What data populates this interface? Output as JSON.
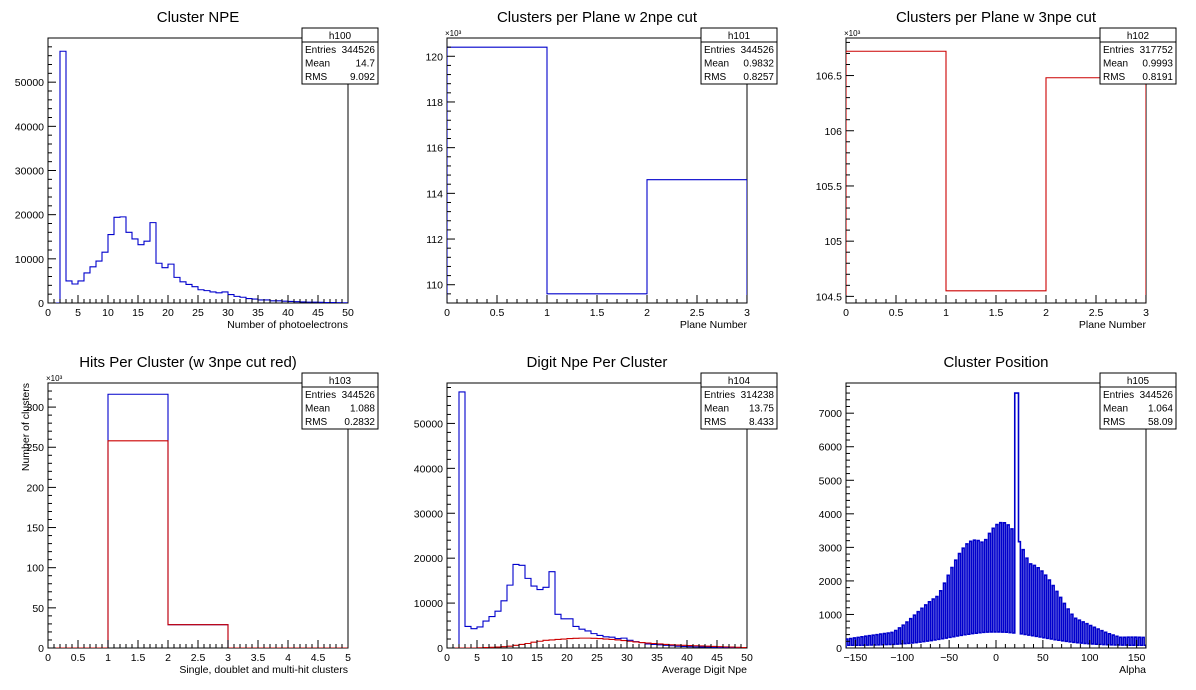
{
  "chart_data": [
    {
      "id": "h100",
      "type": "histogram",
      "title": "Cluster NPE",
      "xlabel": "Number of photoelectrons",
      "ylabel": "",
      "xlim": [
        0,
        50
      ],
      "ylim": [
        0,
        60000
      ],
      "xticks": [
        0,
        5,
        10,
        15,
        20,
        25,
        30,
        35,
        40,
        45,
        50
      ],
      "xtick_labels": [
        "0",
        "5",
        "10",
        "15",
        "20",
        "25",
        "30",
        "35",
        "40",
        "45",
        "50"
      ],
      "yticks": [
        0,
        10000,
        20000,
        30000,
        40000,
        50000
      ],
      "ytick_labels": [
        "0",
        "10000",
        "20000",
        "30000",
        "40000",
        "50000"
      ],
      "yexp": "",
      "stats": {
        "name": "h100",
        "entries": "344526",
        "mean": "14.7",
        "rms": "9.092"
      },
      "series": [
        {
          "color": "#0000cc",
          "bin_width": 1,
          "x_start": 1,
          "values": [
            0,
            57000,
            5000,
            4300,
            5000,
            6800,
            8200,
            9500,
            11500,
            15500,
            19400,
            19500,
            16000,
            14500,
            13200,
            14000,
            18200,
            9000,
            8000,
            8800,
            5800,
            4800,
            4200,
            3700,
            3000,
            2800,
            2500,
            2300,
            2500,
            1900,
            1500,
            1300,
            1000,
            900,
            700,
            700,
            500,
            500,
            400,
            350,
            300,
            250,
            200,
            200,
            150,
            100,
            100,
            80,
            50
          ]
        }
      ]
    },
    {
      "id": "h101",
      "type": "histogram",
      "title": "Clusters per Plane w 2npe cut",
      "xlabel": "Plane Number",
      "ylabel": "",
      "xlim": [
        0,
        3
      ],
      "ylim": [
        109200,
        120800
      ],
      "xticks": [
        0,
        0.5,
        1,
        1.5,
        2,
        2.5,
        3
      ],
      "xtick_labels": [
        "0",
        "0.5",
        "1",
        "1.5",
        "2",
        "2.5",
        "3"
      ],
      "yticks": [
        110000,
        112000,
        114000,
        116000,
        118000,
        120000
      ],
      "ytick_labels": [
        "110",
        "112",
        "114",
        "116",
        "118",
        "120"
      ],
      "yexp": "×10³",
      "stats": {
        "name": "h101",
        "entries": "344526",
        "mean": "0.9832",
        "rms": "0.8257"
      },
      "series": [
        {
          "color": "#0000cc",
          "bin_width": 1,
          "x_start": 0,
          "values": [
            120400,
            109600,
            114600
          ]
        }
      ]
    },
    {
      "id": "h102",
      "type": "histogram",
      "title": "Clusters per Plane w 3npe cut",
      "xlabel": "Plane Number",
      "ylabel": "",
      "xlim": [
        0,
        3
      ],
      "ylim": [
        104440,
        106840
      ],
      "xticks": [
        0,
        0.5,
        1,
        1.5,
        2,
        2.5,
        3
      ],
      "xtick_labels": [
        "0",
        "0.5",
        "1",
        "1.5",
        "2",
        "2.5",
        "3"
      ],
      "yticks": [
        104500,
        105000,
        105500,
        106000,
        106500
      ],
      "ytick_labels": [
        "104.5",
        "105",
        "105.5",
        "106",
        "106.5"
      ],
      "yexp": "×10³",
      "stats": {
        "name": "h102",
        "entries": "317752",
        "mean": "0.9993",
        "rms": "0.8191"
      },
      "series": [
        {
          "color": "#cc0000",
          "bin_width": 1,
          "x_start": 0,
          "values": [
            106720,
            104550,
            106480
          ]
        }
      ]
    },
    {
      "id": "h103",
      "type": "histogram",
      "title": "Hits Per Cluster (w 3npe cut red)",
      "xlabel": "Single, doublet and multi-hit clusters",
      "ylabel": "Number of clusters",
      "xlim": [
        0,
        5
      ],
      "ylim": [
        0,
        330000
      ],
      "xticks": [
        0,
        0.5,
        1,
        1.5,
        2,
        2.5,
        3,
        3.5,
        4,
        4.5,
        5
      ],
      "xtick_labels": [
        "0",
        "0.5",
        "1",
        "1.5",
        "2",
        "2.5",
        "3",
        "3.5",
        "4",
        "4.5",
        "5"
      ],
      "yticks": [
        0,
        50000,
        100000,
        150000,
        200000,
        250000,
        300000
      ],
      "ytick_labels": [
        "0",
        "50",
        "100",
        "150",
        "200",
        "250",
        "300"
      ],
      "yexp": "×10³",
      "stats": {
        "name": "h103",
        "entries": "344526",
        "mean": "1.088",
        "rms": "0.2832"
      },
      "series": [
        {
          "color": "#0000cc",
          "bin_width": 1,
          "x_start": 0,
          "values": [
            0,
            316000,
            29000,
            0,
            0
          ]
        },
        {
          "color": "#cc0000",
          "bin_width": 1,
          "x_start": 0,
          "values": [
            0,
            258000,
            29000,
            0,
            0
          ]
        }
      ]
    },
    {
      "id": "h104",
      "type": "histogram",
      "title": "Digit Npe Per Cluster",
      "xlabel": "Average Digit Npe",
      "ylabel": "",
      "xlim": [
        0,
        50
      ],
      "ylim": [
        0,
        59000
      ],
      "xticks": [
        0,
        5,
        10,
        15,
        20,
        25,
        30,
        35,
        40,
        45,
        50
      ],
      "xtick_labels": [
        "0",
        "5",
        "10",
        "15",
        "20",
        "25",
        "30",
        "35",
        "40",
        "45",
        "50"
      ],
      "yticks": [
        0,
        10000,
        20000,
        30000,
        40000,
        50000
      ],
      "ytick_labels": [
        "0",
        "10000",
        "20000",
        "30000",
        "40000",
        "50000"
      ],
      "yexp": "",
      "stats": {
        "name": "h104",
        "entries": "314238",
        "mean": "13.75",
        "rms": "8.433"
      },
      "series": [
        {
          "color": "#0000cc",
          "bin_width": 1,
          "x_start": 1,
          "values": [
            0,
            57000,
            4800,
            4300,
            4700,
            6000,
            7000,
            8200,
            10500,
            14000,
            18600,
            18400,
            15500,
            13800,
            13000,
            13500,
            17000,
            7500,
            6500,
            6500,
            4800,
            4200,
            3800,
            3200,
            2800,
            2500,
            2400,
            2100,
            2200,
            1700,
            1400,
            1200,
            900,
            800,
            700,
            600,
            500,
            400,
            350,
            300,
            250,
            200,
            200,
            150,
            100,
            100,
            80,
            50,
            30
          ]
        },
        {
          "color": "#cc0000",
          "bin_width": 1,
          "x_start": 1,
          "values": [
            0,
            0,
            0,
            0,
            50,
            100,
            150,
            200,
            300,
            400,
            600,
            800,
            1000,
            1300,
            1500,
            1700,
            1800,
            1900,
            2000,
            2100,
            2150,
            2200,
            2200,
            2150,
            2100,
            2000,
            1900,
            1800,
            1650,
            1500,
            1350,
            1200,
            1100,
            1000,
            900,
            800,
            700,
            650,
            600,
            550,
            500,
            450,
            400,
            350,
            300,
            250,
            200,
            150,
            100
          ]
        }
      ]
    },
    {
      "id": "h105",
      "type": "histogram",
      "title": "Cluster Position",
      "xlabel": "Alpha",
      "ylabel": "",
      "xlim": [
        -160,
        160
      ],
      "ylim": [
        0,
        7900
      ],
      "xticks": [
        -150,
        -100,
        -50,
        0,
        50,
        100,
        150
      ],
      "xtick_labels": [
        "−150",
        "−100",
        "−50",
        "0",
        "50",
        "100",
        "150"
      ],
      "yticks": [
        0,
        1000,
        2000,
        3000,
        4000,
        5000,
        6000,
        7000
      ],
      "ytick_labels": [
        "0",
        "1000",
        "2000",
        "3000",
        "4000",
        "5000",
        "6000",
        "7000"
      ],
      "yexp": "",
      "stats": {
        "name": "h105",
        "entries": "344526",
        "mean": "1.064",
        "rms": "58.09"
      },
      "profile": {
        "sigma": 48,
        "peak_high": 3800,
        "peak_low": 480,
        "base_high": 300,
        "base_low": 80,
        "spike_x": 22,
        "spike_value": 7600
      },
      "series": [
        {
          "color": "#0000cc",
          "bin_width": 2,
          "x_start": -160,
          "values": []
        }
      ]
    }
  ]
}
